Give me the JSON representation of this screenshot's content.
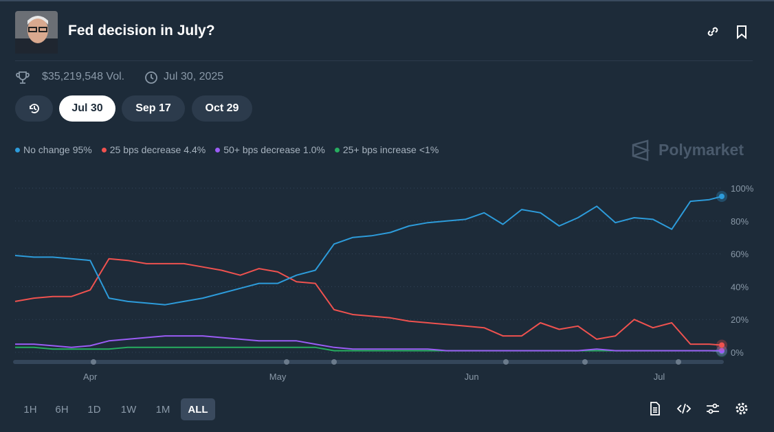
{
  "header": {
    "title": "Fed decision in July?"
  },
  "meta": {
    "volume": "$35,219,548 Vol.",
    "date": "Jul 30, 2025"
  },
  "tabs": [
    "Jul 30",
    "Sep 17",
    "Oct 29"
  ],
  "brand": "Polymarket",
  "time_ranges": [
    "1H",
    "6H",
    "1D",
    "1W",
    "1M",
    "ALL"
  ],
  "chart_data": {
    "type": "line",
    "x": [
      0,
      3,
      6,
      9,
      12,
      15,
      18,
      21,
      24,
      27,
      30,
      33,
      36,
      39,
      42,
      45,
      48,
      51,
      54,
      57,
      60,
      63,
      66,
      69,
      72,
      75,
      78,
      81,
      84,
      87,
      90,
      93,
      96,
      99,
      102,
      105,
      108,
      111,
      113
    ],
    "xlim": [
      0,
      113
    ],
    "xticks": [
      {
        "value": 12,
        "label": "Apr"
      },
      {
        "value": 42,
        "label": "May"
      },
      {
        "value": 73,
        "label": "Jun"
      },
      {
        "value": 103,
        "label": "Jul"
      }
    ],
    "ylim": [
      0,
      100
    ],
    "yticks": [
      {
        "value": 0,
        "label": "0%"
      },
      {
        "value": 20,
        "label": "20%"
      },
      {
        "value": 40,
        "label": "40%"
      },
      {
        "value": 60,
        "label": "60%"
      },
      {
        "value": 80,
        "label": "80%"
      },
      {
        "value": 100,
        "label": "100%"
      }
    ],
    "grid": true,
    "series": [
      {
        "name": "No change",
        "current_label": "95%",
        "color": "#2d9cdb",
        "values": [
          59,
          58,
          58,
          57,
          56,
          33,
          31,
          30,
          29,
          31,
          33,
          36,
          39,
          42,
          42,
          47,
          50,
          66,
          70,
          71,
          73,
          77,
          79,
          80,
          81,
          85,
          78,
          87,
          85,
          77,
          82,
          89,
          79,
          82,
          81,
          75,
          92,
          93,
          95
        ]
      },
      {
        "name": "25 bps decrease",
        "current_label": "4.4%",
        "color": "#f0524f",
        "values": [
          31,
          33,
          34,
          34,
          38,
          57,
          56,
          54,
          54,
          54,
          52,
          50,
          47,
          51,
          49,
          43,
          42,
          26,
          23,
          22,
          21,
          19,
          18,
          17,
          16,
          15,
          10,
          10,
          18,
          14,
          16,
          8,
          10,
          20,
          15,
          18,
          5,
          5,
          4.4
        ]
      },
      {
        "name": "50+ bps decrease",
        "current_label": "1.0%",
        "color": "#9b5cf6",
        "values": [
          5,
          5,
          4,
          3,
          4,
          7,
          8,
          9,
          10,
          10,
          10,
          9,
          8,
          7,
          7,
          7,
          5,
          3,
          2,
          2,
          2,
          2,
          2,
          1,
          1,
          1,
          1,
          1,
          1,
          1,
          1,
          2,
          1,
          1,
          1,
          1,
          1,
          1,
          1.0
        ]
      },
      {
        "name": "25+ bps increase",
        "current_label": "<1%",
        "color": "#27ae60",
        "values": [
          3,
          3,
          2,
          2,
          2,
          2,
          3,
          3,
          3,
          3,
          3,
          3,
          3,
          3,
          3,
          3,
          3,
          1,
          1,
          1,
          1,
          1,
          1,
          1,
          1,
          1,
          1,
          1,
          1,
          1,
          1,
          1,
          1,
          1,
          1,
          1,
          1,
          1,
          0.5
        ]
      }
    ]
  }
}
